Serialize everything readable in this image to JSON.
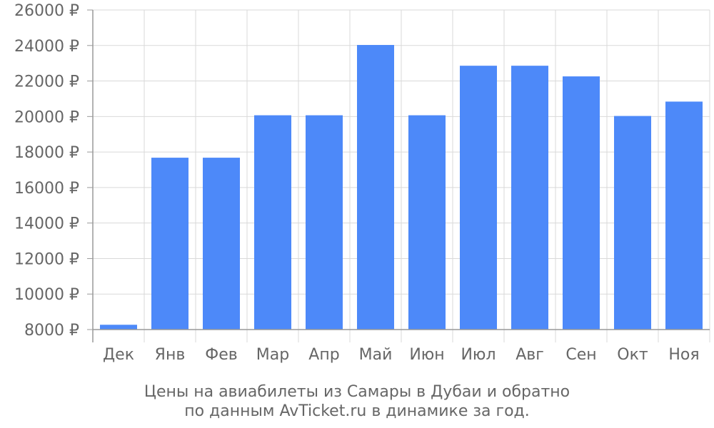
{
  "chart_data": {
    "type": "bar",
    "categories": [
      "Дек",
      "Янв",
      "Фев",
      "Мар",
      "Апр",
      "Май",
      "Июн",
      "Июл",
      "Авг",
      "Сен",
      "Окт",
      "Ноя"
    ],
    "values": [
      8270,
      17680,
      17680,
      20070,
      20070,
      24030,
      20070,
      22860,
      22860,
      22260,
      20030,
      20840
    ],
    "ylim": [
      8000,
      26000
    ],
    "y_tick_values": [
      8000,
      10000,
      12000,
      14000,
      16000,
      18000,
      20000,
      22000,
      24000,
      26000
    ],
    "y_tick_labels": [
      "8000 ₽",
      "10000 ₽",
      "12000 ₽",
      "14000 ₽",
      "16000 ₽",
      "18000 ₽",
      "20000 ₽",
      "22000 ₽",
      "24000 ₽",
      "26000 ₽"
    ],
    "caption_line1": "Цены на авиабилеты из Самары в Дубаи и обратно",
    "caption_line2": "по данным AvTicket.ru в динамике за год.",
    "grid": true,
    "bar_color": "#4d89f9",
    "grid_color": "#d9d9d9",
    "axis_color": "#999999",
    "text_color": "#666666"
  }
}
